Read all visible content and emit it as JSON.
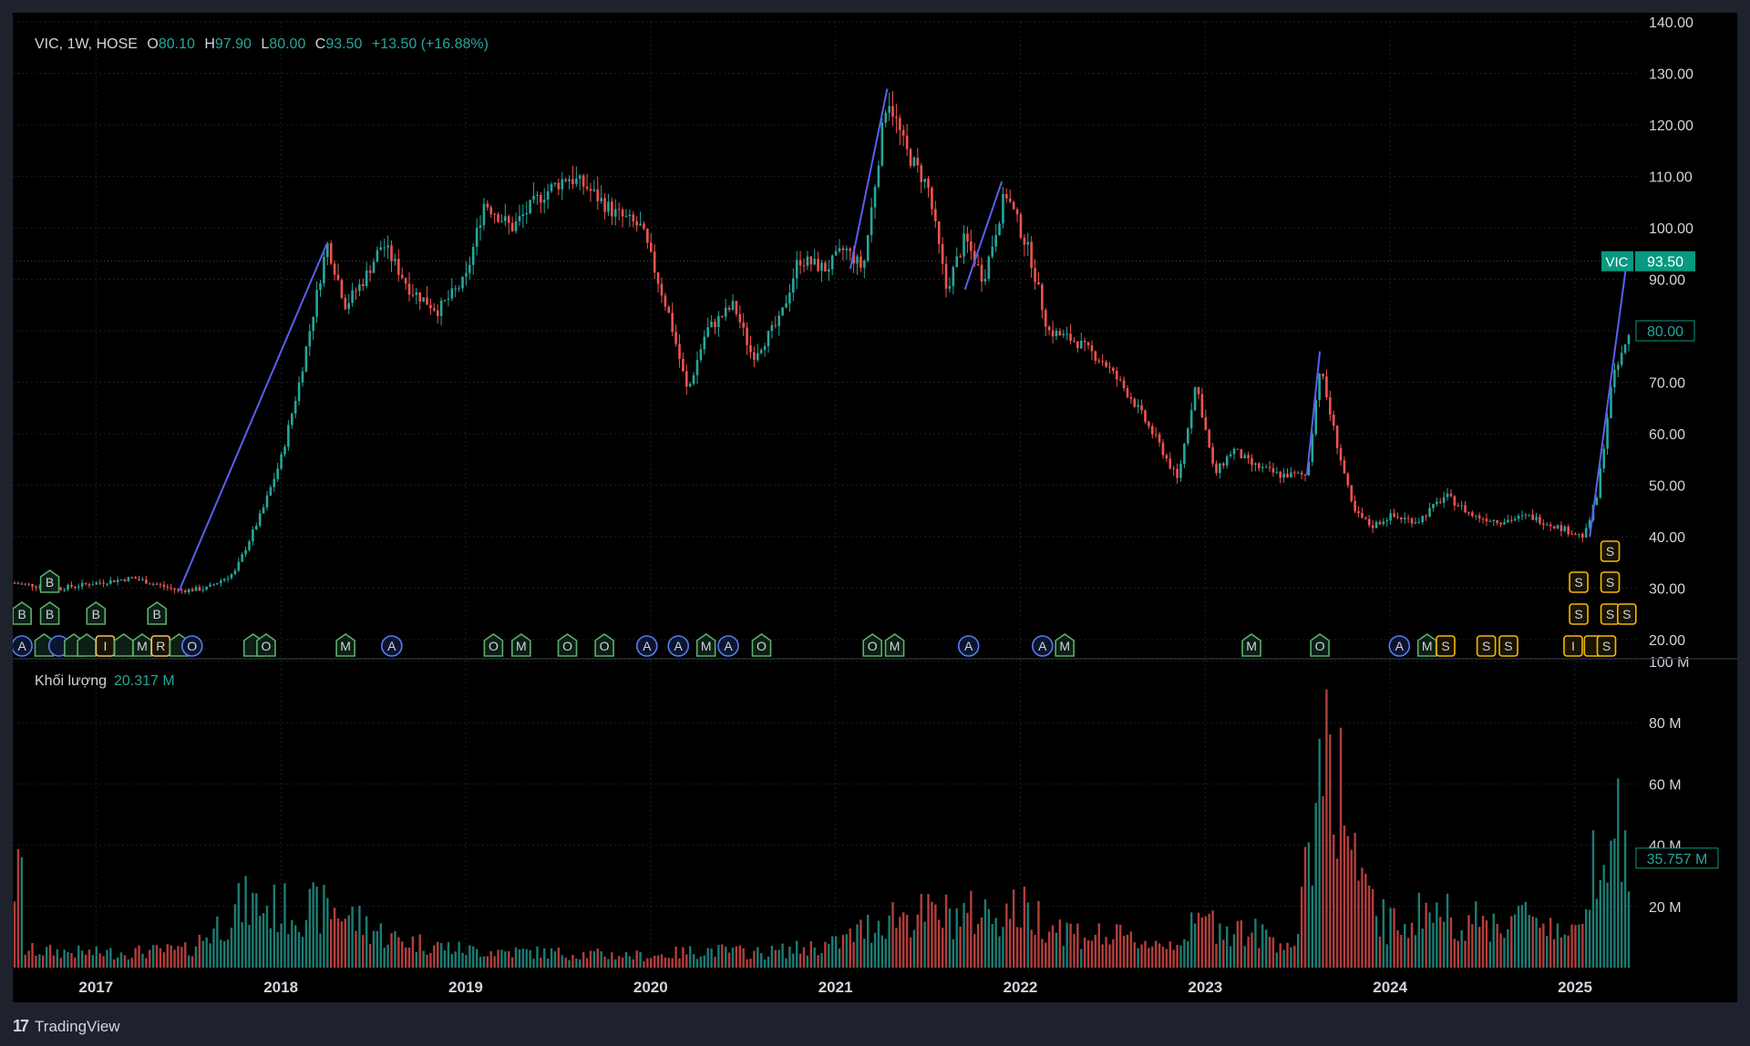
{
  "header": {
    "symbol_line": "VIC, 1W, HOSE",
    "open_label": "O",
    "open_value": "80.10",
    "high_label": "H",
    "high_value": "97.90",
    "low_label": "L",
    "low_value": "80.00",
    "close_label": "C",
    "close_value": "93.50",
    "change": "+13.50 (+16.88%)"
  },
  "volume_legend": {
    "label": "Khối lượng",
    "value": "20.317 M"
  },
  "price_badges": {
    "last": {
      "symbol": "VIC",
      "value": "93.50"
    },
    "prev": {
      "value": "80.00"
    },
    "volume": {
      "value": "35.757 M"
    }
  },
  "footer": {
    "brand": "TradingView"
  },
  "colors": {
    "up": "#26a69a",
    "down": "#ef5350",
    "trendline": "#5b5ff0",
    "grid": "#1c1f26"
  },
  "chart_data": {
    "type": "candlestick",
    "interval": "1W",
    "price_axis": {
      "ticks": [
        "20.00",
        "30.00",
        "40.00",
        "50.00",
        "60.00",
        "70.00",
        "80.00",
        "90.00",
        "100.00",
        "110.00",
        "120.00",
        "130.00",
        "140.00"
      ],
      "ylim": [
        17,
        140
      ]
    },
    "volume_axis": {
      "ticks": [
        "20 M",
        "40 M",
        "60 M",
        "80 M",
        "100 M"
      ],
      "ylim": [
        0,
        100
      ]
    },
    "x_ticks": [
      "2017",
      "2018",
      "2019",
      "2020",
      "2021",
      "2022",
      "2023",
      "2024",
      "2025"
    ],
    "xlim": [
      2016.55,
      2025.35
    ],
    "price_path": [
      [
        2016.55,
        31
      ],
      [
        2016.8,
        30
      ],
      [
        2017.0,
        31
      ],
      [
        2017.2,
        32
      ],
      [
        2017.45,
        29.5
      ],
      [
        2017.6,
        30
      ],
      [
        2017.75,
        33
      ],
      [
        2017.9,
        45
      ],
      [
        2018.0,
        55
      ],
      [
        2018.1,
        70
      ],
      [
        2018.25,
        97
      ],
      [
        2018.35,
        85
      ],
      [
        2018.45,
        90
      ],
      [
        2018.55,
        97
      ],
      [
        2018.7,
        88
      ],
      [
        2018.85,
        84
      ],
      [
        2019.0,
        90
      ],
      [
        2019.1,
        105
      ],
      [
        2019.25,
        100
      ],
      [
        2019.4,
        106
      ],
      [
        2019.55,
        110
      ],
      [
        2019.65,
        108
      ],
      [
        2019.8,
        103
      ],
      [
        2019.95,
        100
      ],
      [
        2020.1,
        83
      ],
      [
        2020.2,
        68
      ],
      [
        2020.3,
        80
      ],
      [
        2020.45,
        85
      ],
      [
        2020.55,
        75
      ],
      [
        2020.7,
        82
      ],
      [
        2020.8,
        94
      ],
      [
        2020.95,
        92
      ],
      [
        2021.05,
        96
      ],
      [
        2021.15,
        92
      ],
      [
        2021.28,
        126
      ],
      [
        2021.38,
        115
      ],
      [
        2021.5,
        108
      ],
      [
        2021.6,
        88
      ],
      [
        2021.7,
        98
      ],
      [
        2021.8,
        90
      ],
      [
        2021.92,
        107
      ],
      [
        2022.05,
        95
      ],
      [
        2022.15,
        80
      ],
      [
        2022.3,
        78
      ],
      [
        2022.45,
        74
      ],
      [
        2022.6,
        67
      ],
      [
        2022.75,
        58
      ],
      [
        2022.85,
        51
      ],
      [
        2022.95,
        70
      ],
      [
        2023.05,
        52
      ],
      [
        2023.15,
        57
      ],
      [
        2023.25,
        54
      ],
      [
        2023.4,
        52
      ],
      [
        2023.55,
        52
      ],
      [
        2023.62,
        73
      ],
      [
        2023.7,
        60
      ],
      [
        2023.8,
        45
      ],
      [
        2023.9,
        42
      ],
      [
        2024.0,
        44
      ],
      [
        2024.15,
        43
      ],
      [
        2024.3,
        48
      ],
      [
        2024.45,
        44
      ],
      [
        2024.6,
        43
      ],
      [
        2024.75,
        44
      ],
      [
        2024.9,
        42
      ],
      [
        2025.05,
        40
      ],
      [
        2025.12,
        48
      ],
      [
        2025.2,
        70
      ],
      [
        2025.3,
        80
      ]
    ],
    "trendlines": [
      {
        "x1": 2017.45,
        "y1": 29.5,
        "x2": 2018.25,
        "y2": 97
      },
      {
        "x1": 2021.08,
        "y1": 92,
        "x2": 2021.28,
        "y2": 127
      },
      {
        "x1": 2021.7,
        "y1": 88,
        "x2": 2021.9,
        "y2": 109
      },
      {
        "x1": 2023.55,
        "y1": 52,
        "x2": 2023.62,
        "y2": 76
      },
      {
        "x1": 2025.08,
        "y1": 40,
        "x2": 2025.28,
        "y2": 93.5
      }
    ],
    "volume_path": [
      [
        2016.6,
        6
      ],
      [
        2017.0,
        5
      ],
      [
        2017.5,
        6
      ],
      [
        2017.8,
        22
      ],
      [
        2018.0,
        20
      ],
      [
        2018.3,
        20
      ],
      [
        2018.6,
        10
      ],
      [
        2019.0,
        6
      ],
      [
        2019.5,
        5
      ],
      [
        2020.0,
        4
      ],
      [
        2020.3,
        6
      ],
      [
        2020.6,
        5
      ],
      [
        2021.0,
        8
      ],
      [
        2021.3,
        18
      ],
      [
        2021.7,
        18
      ],
      [
        2022.0,
        20
      ],
      [
        2022.3,
        12
      ],
      [
        2022.8,
        8
      ],
      [
        2023.0,
        16
      ],
      [
        2023.5,
        8
      ],
      [
        2023.6,
        60
      ],
      [
        2023.65,
        90
      ],
      [
        2023.75,
        55
      ],
      [
        2023.85,
        25
      ],
      [
        2024.0,
        14
      ],
      [
        2024.2,
        20
      ],
      [
        2024.5,
        15
      ],
      [
        2024.8,
        18
      ],
      [
        2025.0,
        10
      ],
      [
        2025.1,
        40
      ],
      [
        2025.2,
        55
      ],
      [
        2025.3,
        30
      ]
    ],
    "markers": [
      {
        "x": 2016.6,
        "row": 3,
        "label": "A",
        "kind": "circle"
      },
      {
        "x": 2016.72,
        "row": 3,
        "label": "",
        "kind": "flag"
      },
      {
        "x": 2016.8,
        "row": 3,
        "label": "",
        "kind": "circle"
      },
      {
        "x": 2016.88,
        "row": 3,
        "label": "",
        "kind": "flag"
      },
      {
        "x": 2016.95,
        "row": 3,
        "label": "",
        "kind": "flag"
      },
      {
        "x": 2017.05,
        "row": 3,
        "label": "I",
        "kind": "box"
      },
      {
        "x": 2017.15,
        "row": 3,
        "label": "",
        "kind": "flag"
      },
      {
        "x": 2017.25,
        "row": 3,
        "label": "M",
        "kind": "flag"
      },
      {
        "x": 2017.35,
        "row": 3,
        "label": "R",
        "kind": "box"
      },
      {
        "x": 2017.45,
        "row": 3,
        "label": "",
        "kind": "flag"
      },
      {
        "x": 2017.52,
        "row": 3,
        "label": "O",
        "kind": "circle"
      },
      {
        "x": 2017.85,
        "row": 3,
        "label": "",
        "kind": "flag"
      },
      {
        "x": 2017.92,
        "row": 3,
        "label": "O",
        "kind": "flag"
      },
      {
        "x": 2018.35,
        "row": 3,
        "label": "M",
        "kind": "flag"
      },
      {
        "x": 2018.6,
        "row": 3,
        "label": "A",
        "kind": "circle"
      },
      {
        "x": 2019.15,
        "row": 3,
        "label": "O",
        "kind": "flag"
      },
      {
        "x": 2019.3,
        "row": 3,
        "label": "M",
        "kind": "flag"
      },
      {
        "x": 2019.55,
        "row": 3,
        "label": "O",
        "kind": "flag"
      },
      {
        "x": 2019.75,
        "row": 3,
        "label": "O",
        "kind": "flag"
      },
      {
        "x": 2019.98,
        "row": 3,
        "label": "A",
        "kind": "circle"
      },
      {
        "x": 2020.15,
        "row": 3,
        "label": "A",
        "kind": "circle"
      },
      {
        "x": 2020.3,
        "row": 3,
        "label": "M",
        "kind": "flag"
      },
      {
        "x": 2020.42,
        "row": 3,
        "label": "A",
        "kind": "circle"
      },
      {
        "x": 2020.6,
        "row": 3,
        "label": "O",
        "kind": "flag"
      },
      {
        "x": 2021.2,
        "row": 3,
        "label": "O",
        "kind": "flag"
      },
      {
        "x": 2021.32,
        "row": 3,
        "label": "M",
        "kind": "flag"
      },
      {
        "x": 2021.72,
        "row": 3,
        "label": "A",
        "kind": "circle"
      },
      {
        "x": 2022.12,
        "row": 3,
        "label": "A",
        "kind": "circle"
      },
      {
        "x": 2022.24,
        "row": 3,
        "label": "M",
        "kind": "flag"
      },
      {
        "x": 2023.25,
        "row": 3,
        "label": "M",
        "kind": "flag"
      },
      {
        "x": 2023.62,
        "row": 3,
        "label": "O",
        "kind": "flag"
      },
      {
        "x": 2024.05,
        "row": 3,
        "label": "A",
        "kind": "circle"
      },
      {
        "x": 2024.2,
        "row": 3,
        "label": "M",
        "kind": "flag"
      },
      {
        "x": 2024.3,
        "row": 3,
        "label": "S",
        "kind": "ybox"
      },
      {
        "x": 2024.52,
        "row": 3,
        "label": "S",
        "kind": "ybox"
      },
      {
        "x": 2024.64,
        "row": 3,
        "label": "S",
        "kind": "ybox"
      },
      {
        "x": 2024.99,
        "row": 3,
        "label": "I",
        "kind": "ybox"
      },
      {
        "x": 2025.1,
        "row": 3,
        "label": "",
        "kind": "ybox"
      },
      {
        "x": 2025.17,
        "row": 3,
        "label": "S",
        "kind": "ybox"
      },
      {
        "x": 2016.6,
        "row": 2,
        "label": "B",
        "kind": "flag"
      },
      {
        "x": 2016.75,
        "row": 2,
        "label": "B",
        "kind": "flag"
      },
      {
        "x": 2017.0,
        "row": 2,
        "label": "B",
        "kind": "flag"
      },
      {
        "x": 2017.33,
        "row": 2,
        "label": "B",
        "kind": "flag"
      },
      {
        "x": 2025.02,
        "row": 2,
        "label": "S",
        "kind": "ybox"
      },
      {
        "x": 2025.19,
        "row": 2,
        "label": "S",
        "kind": "ybox"
      },
      {
        "x": 2025.28,
        "row": 2,
        "label": "S",
        "kind": "ybox"
      },
      {
        "x": 2016.75,
        "row": 1,
        "label": "B",
        "kind": "flag"
      },
      {
        "x": 2025.02,
        "row": 1,
        "label": "S",
        "kind": "ybox"
      },
      {
        "x": 2025.19,
        "row": 1,
        "label": "S",
        "kind": "ybox"
      },
      {
        "x": 2025.19,
        "row": 0,
        "label": "S",
        "kind": "ybox"
      }
    ]
  }
}
